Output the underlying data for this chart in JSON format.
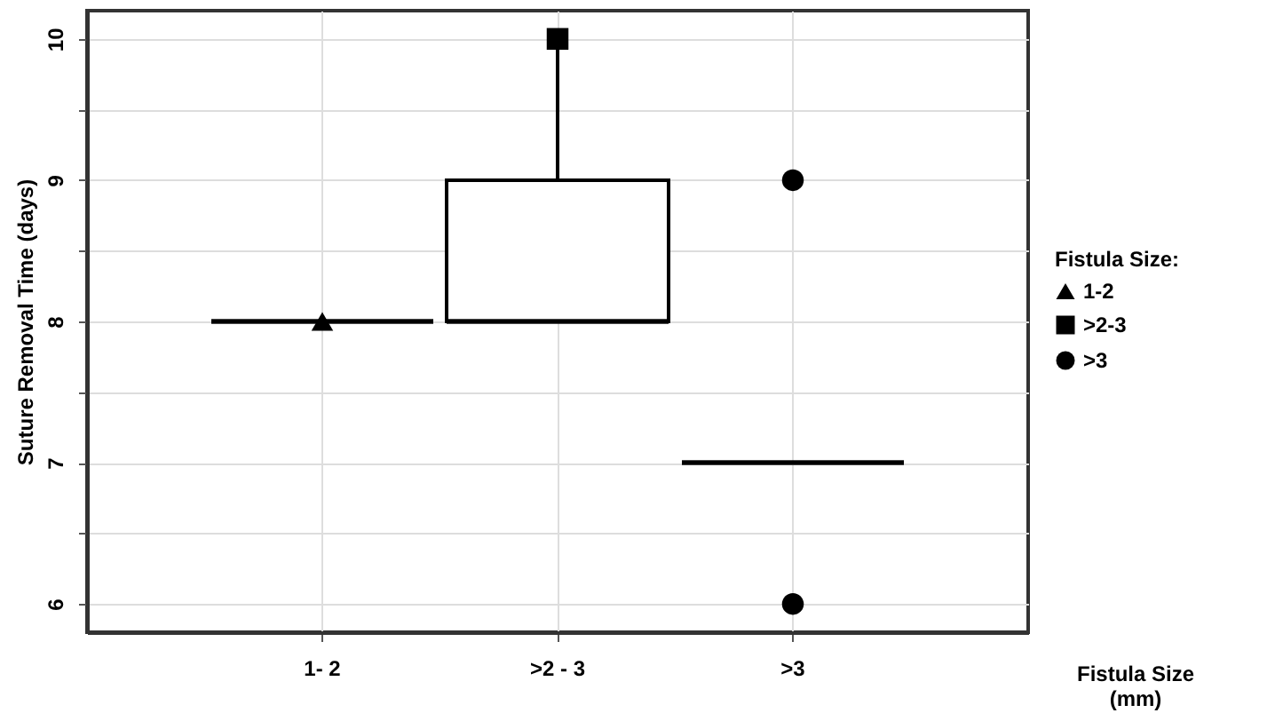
{
  "chart_data": {
    "type": "box",
    "xlabel": "Fistula Size (mm)",
    "ylabel": "Suture Removal Time (days)",
    "legend_title": "Fistula Size:",
    "categories": [
      "1- 2",
      ">2 - 3",
      ">3"
    ],
    "color": "#000000",
    "boxes": [
      {
        "low": 8,
        "q1": 8,
        "median": 8,
        "q3": 8,
        "high": 8
      },
      {
        "low": 8,
        "q1": 8,
        "median": 8,
        "q3": 9,
        "high": 10
      },
      {
        "low": 7,
        "q1": 7,
        "median": 7,
        "q3": 7,
        "high": 7
      }
    ],
    "series": [
      {
        "name": "1-2",
        "type": "scatter",
        "marker": "triangle",
        "color": "#000000",
        "x": [
          "1- 2"
        ],
        "values": [
          8
        ]
      },
      {
        "name": ">2-3",
        "type": "scatter",
        "marker": "square",
        "color": "#000000",
        "x": [
          ">2 - 3"
        ],
        "values": [
          10
        ]
      },
      {
        "name": ">3",
        "type": "scatter",
        "marker": "circle",
        "color": "#000000",
        "x": [
          ">3",
          ">3"
        ],
        "values": [
          9,
          6
        ]
      }
    ],
    "ylim": [
      5.8,
      10.2
    ],
    "yticks": [
      6,
      {
        "value": 6.5,
        "label": null
      },
      7,
      {
        "value": 7.5,
        "label": null
      },
      8,
      {
        "value": 8.5,
        "label": null
      },
      9,
      {
        "value": 9.5,
        "label": null
      },
      10
    ],
    "grid": true,
    "legend": "right"
  }
}
